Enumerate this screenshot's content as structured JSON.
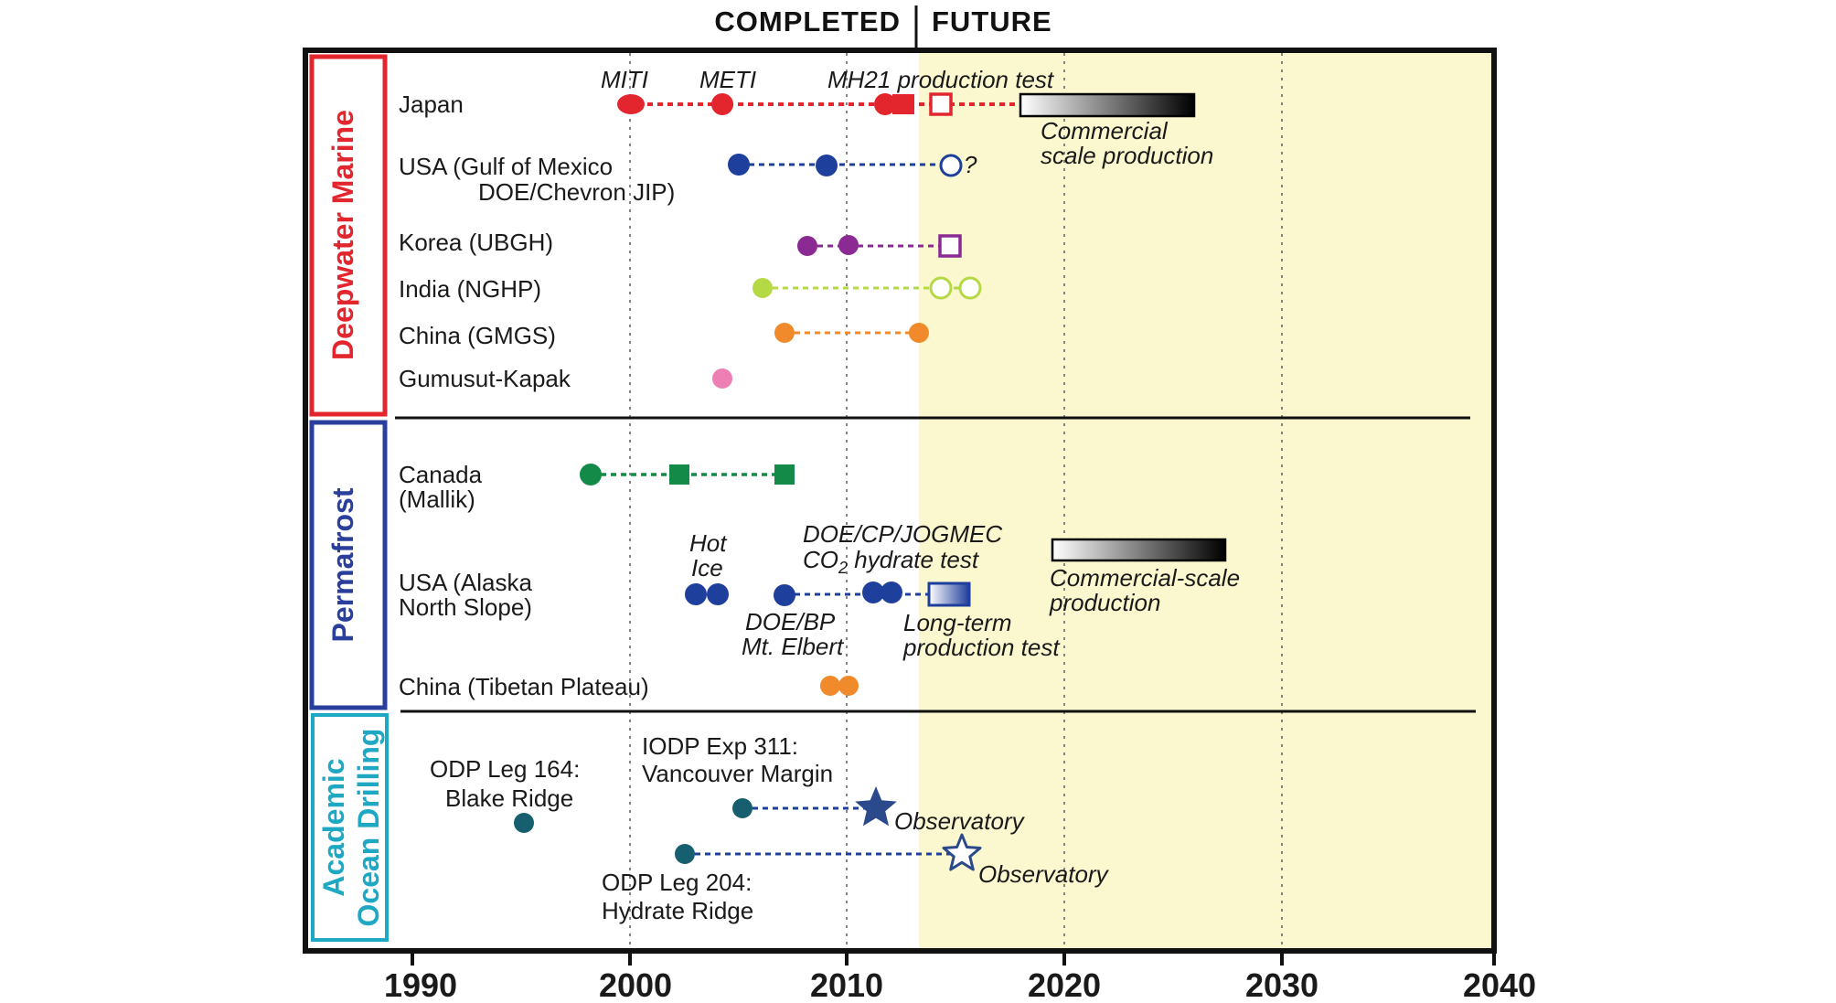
{
  "header": {
    "completed": "COMPLETED",
    "future": "FUTURE"
  },
  "colors": {
    "future_bg": "#fbf7cf",
    "japan": "#e3262e",
    "usa": "#1f3f9c",
    "korea": "#8a2a92",
    "india": "#b5d944",
    "china": "#f08a2a",
    "gumusut": "#ee7fb4",
    "canada": "#138a48",
    "ocean": "#175f6f",
    "deepwater_border": "#e3262e",
    "permafrost_border": "#2a3f9b",
    "ocean_border": "#1fa8c4"
  },
  "categories": {
    "deepwater": "Deepwater Marine",
    "permafrost": "Permafrost",
    "ocean_line1": "Academic",
    "ocean_line2": "Ocean Drilling"
  },
  "axis": {
    "ticks": [
      "1990",
      "2000",
      "2010",
      "2020",
      "2030",
      "2040"
    ]
  },
  "rows": {
    "japan": "Japan",
    "usa_gom_1": "USA (Gulf of Mexico",
    "usa_gom_2": "DOE/Chevron JIP)",
    "korea": "Korea (UBGH)",
    "india": "India (NGHP)",
    "china_gmgs": "China (GMGS)",
    "gumusut": "Gumusut-Kapak",
    "canada_1": "Canada",
    "canada_2": "(Mallik)",
    "alaska_1": "USA (Alaska",
    "alaska_2": "North Slope)",
    "china_tibet": "China (Tibetan Plateau)"
  },
  "annotations": {
    "miti": "MITI",
    "meti": "METI",
    "mh21": "MH21 production test",
    "commercial_1": "Commercial",
    "commercial_2": "scale production",
    "question": "?",
    "hot": "Hot",
    "ice": "Ice",
    "doecp": "DOE/CP/JOGMEC",
    "co2_a": "CO",
    "co2_sub": "2",
    "co2_b": " hydrate test",
    "doebp": "DOE/BP",
    "mtelbert": "Mt. Elbert",
    "longterm_1": "Long-term",
    "longterm_2": "production test",
    "commercial_scale_1": "Commercial-scale",
    "commercial_scale_2": "production",
    "odp164_1": "ODP Leg 164:",
    "odp164_2": "Blake Ridge",
    "iodp311_1": "IODP Exp 311:",
    "iodp311_2": "Vancouver Margin",
    "observatory_1": "Observatory",
    "observatory_2": "Observatory",
    "odp204_1": "ODP Leg 204:",
    "odp204_2": "Hydrate Ridge"
  }
}
